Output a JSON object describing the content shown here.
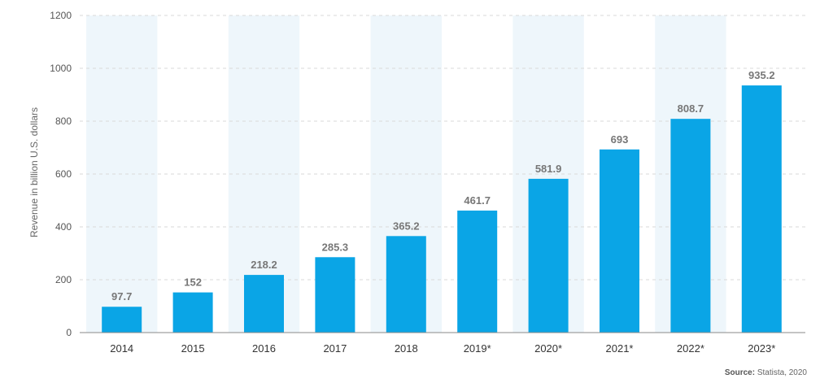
{
  "chart_data": {
    "type": "bar",
    "categories": [
      "2014",
      "2015",
      "2016",
      "2017",
      "2018",
      "2019*",
      "2020*",
      "2021*",
      "2022*",
      "2023*"
    ],
    "values": [
      97.7,
      152,
      218.2,
      285.3,
      365.2,
      461.7,
      581.9,
      693,
      808.7,
      935.2
    ],
    "value_labels": [
      "97.7",
      "152",
      "218.2",
      "285.3",
      "365.2",
      "461.7",
      "581.9",
      "693",
      "808.7",
      "935.2"
    ],
    "ylabel": "Revenue in billion U.S. dollars",
    "xlabel": "",
    "ylim": [
      0,
      1200
    ],
    "yticks": [
      0,
      200,
      400,
      600,
      800,
      1000,
      1200
    ],
    "grid": true,
    "bar_color": "#0aa5e6",
    "band_color": "#eef6fb"
  },
  "source": {
    "label": "Source:",
    "text": "Statista, 2020"
  }
}
